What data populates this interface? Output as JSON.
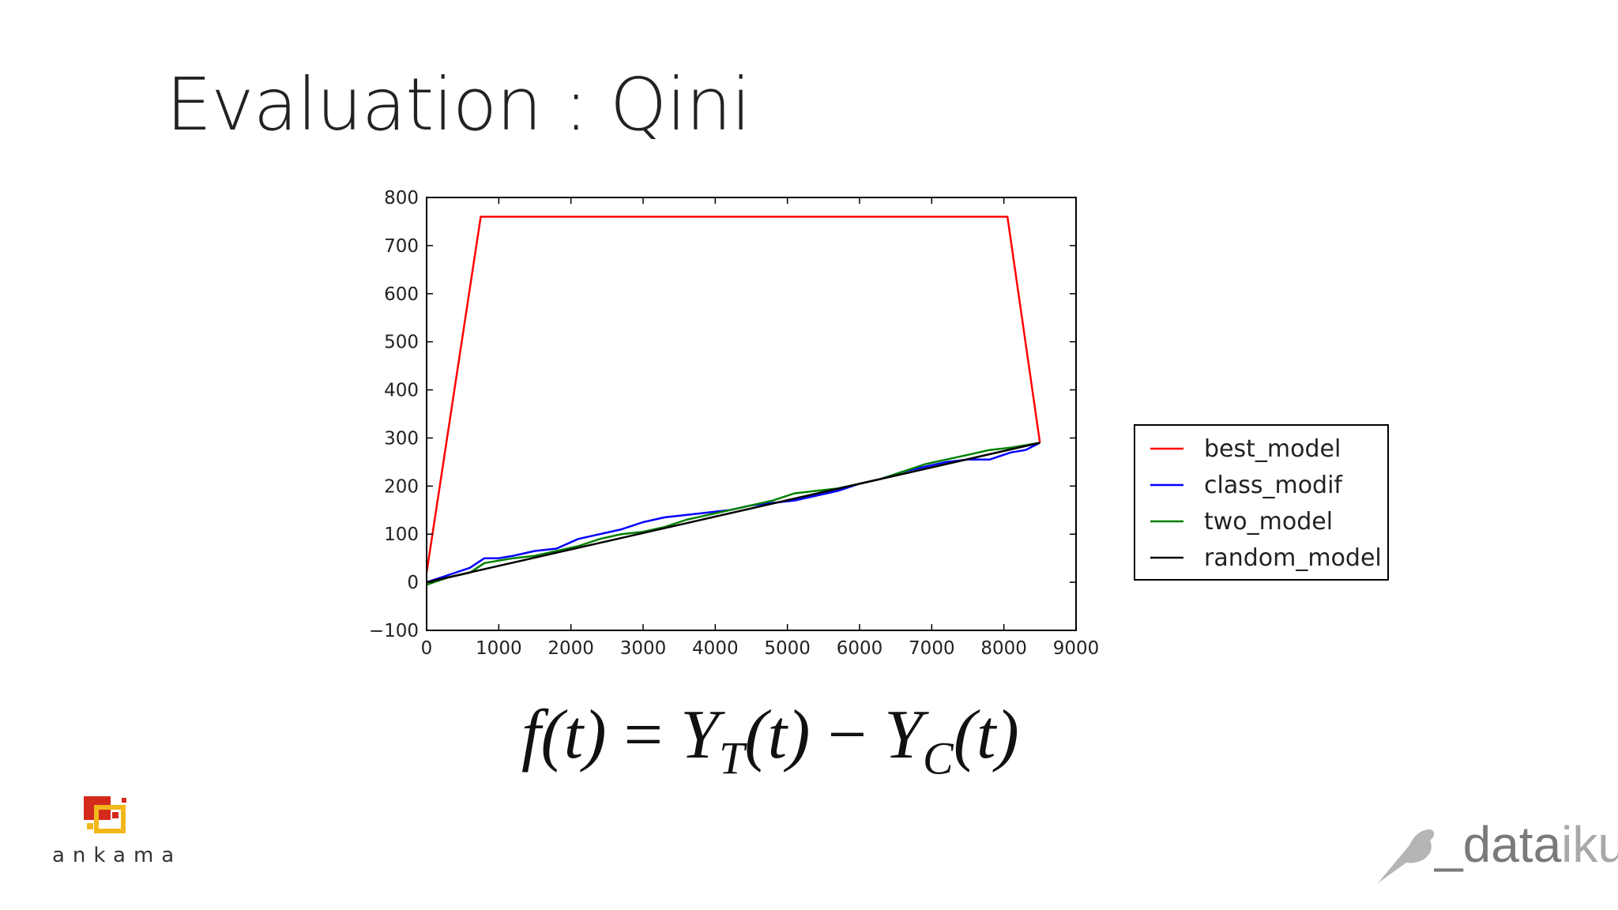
{
  "slide": {
    "title": "Evaluation : Qini",
    "formula": {
      "lhs": "f(t)",
      "eq": " = ",
      "yt": "Y",
      "yt_sub": "T",
      "arg1": "(t)",
      "minus": " − ",
      "yc": "Y",
      "yc_sub": "C",
      "arg2": "(t)"
    }
  },
  "logos": {
    "ankama": {
      "text": "ankama",
      "colors": [
        "#d42a1e",
        "#f2b81b"
      ]
    },
    "dataiku": {
      "text_dark": "_data",
      "text_light": "iku",
      "icon": "bird-icon"
    }
  },
  "chart_data": {
    "type": "line",
    "xlim": [
      0,
      9000
    ],
    "ylim": [
      -100,
      800
    ],
    "xticks": [
      0,
      1000,
      2000,
      3000,
      4000,
      5000,
      6000,
      7000,
      8000,
      9000
    ],
    "yticks": [
      -100,
      0,
      100,
      200,
      300,
      400,
      500,
      600,
      700,
      800
    ],
    "ytick_labels": [
      "−100",
      "0",
      "100",
      "200",
      "300",
      "400",
      "500",
      "600",
      "700",
      "800"
    ],
    "grid": false,
    "legend_position": "right",
    "series": [
      {
        "name": "best_model",
        "color": "#ff0000",
        "x": [
          0,
          750,
          8050,
          8500
        ],
        "y": [
          20,
          760,
          760,
          290
        ]
      },
      {
        "name": "class_modif",
        "color": "#0000ff",
        "x": [
          0,
          300,
          600,
          800,
          1000,
          1200,
          1500,
          1800,
          2100,
          2400,
          2700,
          3000,
          3300,
          3600,
          3900,
          4200,
          4500,
          4800,
          5100,
          5400,
          5700,
          6000,
          6300,
          6600,
          6900,
          7200,
          7500,
          7800,
          8100,
          8300,
          8500
        ],
        "y": [
          0,
          15,
          30,
          50,
          50,
          55,
          65,
          70,
          90,
          100,
          110,
          125,
          135,
          140,
          145,
          150,
          160,
          165,
          170,
          180,
          190,
          205,
          215,
          230,
          240,
          250,
          255,
          255,
          270,
          275,
          290
        ]
      },
      {
        "name": "two_model",
        "color": "#008000",
        "x": [
          0,
          300,
          600,
          800,
          1000,
          1200,
          1500,
          1800,
          2100,
          2400,
          2700,
          3000,
          3300,
          3600,
          3900,
          4200,
          4500,
          4800,
          5100,
          5400,
          5700,
          6000,
          6300,
          6600,
          6900,
          7200,
          7500,
          7800,
          8100,
          8300,
          8500
        ],
        "y": [
          -5,
          10,
          20,
          40,
          45,
          50,
          55,
          65,
          75,
          90,
          100,
          105,
          115,
          130,
          140,
          150,
          160,
          170,
          185,
          190,
          195,
          205,
          215,
          230,
          245,
          255,
          265,
          275,
          280,
          285,
          290
        ]
      },
      {
        "name": "random_model",
        "color": "#000000",
        "x": [
          0,
          8500
        ],
        "y": [
          0,
          290
        ]
      }
    ]
  }
}
